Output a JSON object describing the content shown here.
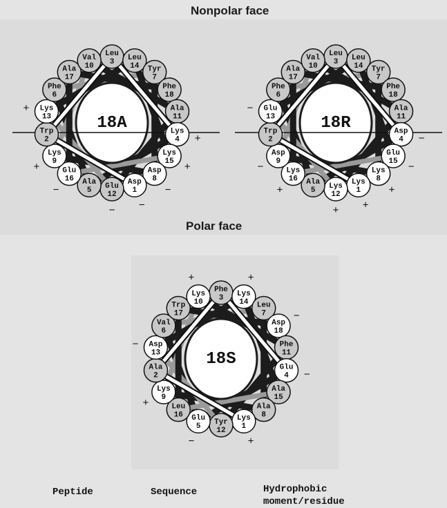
{
  "headings": {
    "top": "Nonpolar face",
    "middle": "Polar face"
  },
  "table_header": {
    "peptide": "Peptide",
    "sequence": "Sequence",
    "moment_line1": "Hydrophobic",
    "moment_line2": "moment/residue"
  },
  "colors": {
    "hydrophobic_fill": "#c8c8c8",
    "hydrophilic_fill": "#ffffff",
    "ribbon_dark": "#1c1c1c",
    "ribbon_light": "#9a9a9a",
    "background": "#e4e4e4"
  },
  "wheels": [
    {
      "name": "18A",
      "residues": [
        {
          "aa": "Leu",
          "n": "3",
          "hydrophobic": true,
          "charge": ""
        },
        {
          "aa": "Leu",
          "n": "14",
          "hydrophobic": true,
          "charge": ""
        },
        {
          "aa": "Tyr",
          "n": "7",
          "hydrophobic": true,
          "charge": ""
        },
        {
          "aa": "Phe",
          "n": "18",
          "hydrophobic": true,
          "charge": ""
        },
        {
          "aa": "Ala",
          "n": "11",
          "hydrophobic": true,
          "charge": ""
        },
        {
          "aa": "Lys",
          "n": "4",
          "hydrophobic": false,
          "charge": "+"
        },
        {
          "aa": "Lys",
          "n": "15",
          "hydrophobic": false,
          "charge": "+"
        },
        {
          "aa": "Asp",
          "n": "8",
          "hydrophobic": false,
          "charge": "−"
        },
        {
          "aa": "Asp",
          "n": "1",
          "hydrophobic": false,
          "charge": "−"
        },
        {
          "aa": "Glu",
          "n": "12",
          "hydrophobic": true,
          "charge": "−"
        },
        {
          "aa": "Ala",
          "n": "5",
          "hydrophobic": true,
          "charge": ""
        },
        {
          "aa": "Glu",
          "n": "16",
          "hydrophobic": false,
          "charge": "−"
        },
        {
          "aa": "Lys",
          "n": "9",
          "hydrophobic": false,
          "charge": "+"
        },
        {
          "aa": "Trp",
          "n": "2",
          "hydrophobic": true,
          "charge": ""
        },
        {
          "aa": "Lys",
          "n": "13",
          "hydrophobic": false,
          "charge": "+"
        },
        {
          "aa": "Phe",
          "n": "6",
          "hydrophobic": true,
          "charge": ""
        },
        {
          "aa": "Ala",
          "n": "17",
          "hydrophobic": true,
          "charge": ""
        },
        {
          "aa": "Val",
          "n": "10",
          "hydrophobic": true,
          "charge": ""
        }
      ]
    },
    {
      "name": "18R",
      "residues": [
        {
          "aa": "Leu",
          "n": "3",
          "hydrophobic": true,
          "charge": ""
        },
        {
          "aa": "Leu",
          "n": "14",
          "hydrophobic": true,
          "charge": ""
        },
        {
          "aa": "Tyr",
          "n": "7",
          "hydrophobic": true,
          "charge": ""
        },
        {
          "aa": "Phe",
          "n": "18",
          "hydrophobic": true,
          "charge": ""
        },
        {
          "aa": "Ala",
          "n": "11",
          "hydrophobic": true,
          "charge": ""
        },
        {
          "aa": "Asp",
          "n": "4",
          "hydrophobic": false,
          "charge": "−"
        },
        {
          "aa": "Glu",
          "n": "15",
          "hydrophobic": false,
          "charge": "−"
        },
        {
          "aa": "Lys",
          "n": "8",
          "hydrophobic": false,
          "charge": "+"
        },
        {
          "aa": "Lys",
          "n": "1",
          "hydrophobic": false,
          "charge": "+"
        },
        {
          "aa": "Lys",
          "n": "12",
          "hydrophobic": false,
          "charge": "+"
        },
        {
          "aa": "Ala",
          "n": "5",
          "hydrophobic": true,
          "charge": ""
        },
        {
          "aa": "Lys",
          "n": "16",
          "hydrophobic": false,
          "charge": "+"
        },
        {
          "aa": "Asp",
          "n": "9",
          "hydrophobic": false,
          "charge": "−"
        },
        {
          "aa": "Trp",
          "n": "2",
          "hydrophobic": true,
          "charge": ""
        },
        {
          "aa": "Glu",
          "n": "13",
          "hydrophobic": false,
          "charge": "−"
        },
        {
          "aa": "Phe",
          "n": "6",
          "hydrophobic": true,
          "charge": ""
        },
        {
          "aa": "Ala",
          "n": "17",
          "hydrophobic": true,
          "charge": ""
        },
        {
          "aa": "Val",
          "n": "10",
          "hydrophobic": true,
          "charge": ""
        }
      ]
    },
    {
      "name": "18S",
      "residues": [
        {
          "aa": "Phe",
          "n": "3",
          "hydrophobic": true,
          "charge": ""
        },
        {
          "aa": "Lys",
          "n": "14",
          "hydrophobic": false,
          "charge": "+"
        },
        {
          "aa": "Leu",
          "n": "7",
          "hydrophobic": true,
          "charge": ""
        },
        {
          "aa": "Asp",
          "n": "18",
          "hydrophobic": false,
          "charge": "−"
        },
        {
          "aa": "Phe",
          "n": "11",
          "hydrophobic": true,
          "charge": ""
        },
        {
          "aa": "Glu",
          "n": "4",
          "hydrophobic": false,
          "charge": "−"
        },
        {
          "aa": "Ala",
          "n": "15",
          "hydrophobic": true,
          "charge": ""
        },
        {
          "aa": "Ala",
          "n": "8",
          "hydrophobic": true,
          "charge": ""
        },
        {
          "aa": "Lys",
          "n": "1",
          "hydrophobic": false,
          "charge": "+"
        },
        {
          "aa": "Tyr",
          "n": "12",
          "hydrophobic": true,
          "charge": ""
        },
        {
          "aa": "Glu",
          "n": "5",
          "hydrophobic": false,
          "charge": "−"
        },
        {
          "aa": "Leu",
          "n": "16",
          "hydrophobic": true,
          "charge": ""
        },
        {
          "aa": "Lys",
          "n": "9",
          "hydrophobic": false,
          "charge": "+"
        },
        {
          "aa": "Ala",
          "n": "2",
          "hydrophobic": true,
          "charge": ""
        },
        {
          "aa": "Asp",
          "n": "13",
          "hydrophobic": false,
          "charge": "−"
        },
        {
          "aa": "Val",
          "n": "6",
          "hydrophobic": true,
          "charge": ""
        },
        {
          "aa": "Trp",
          "n": "17",
          "hydrophobic": true,
          "charge": ""
        },
        {
          "aa": "Lys",
          "n": "10",
          "hydrophobic": false,
          "charge": "+"
        }
      ]
    }
  ]
}
